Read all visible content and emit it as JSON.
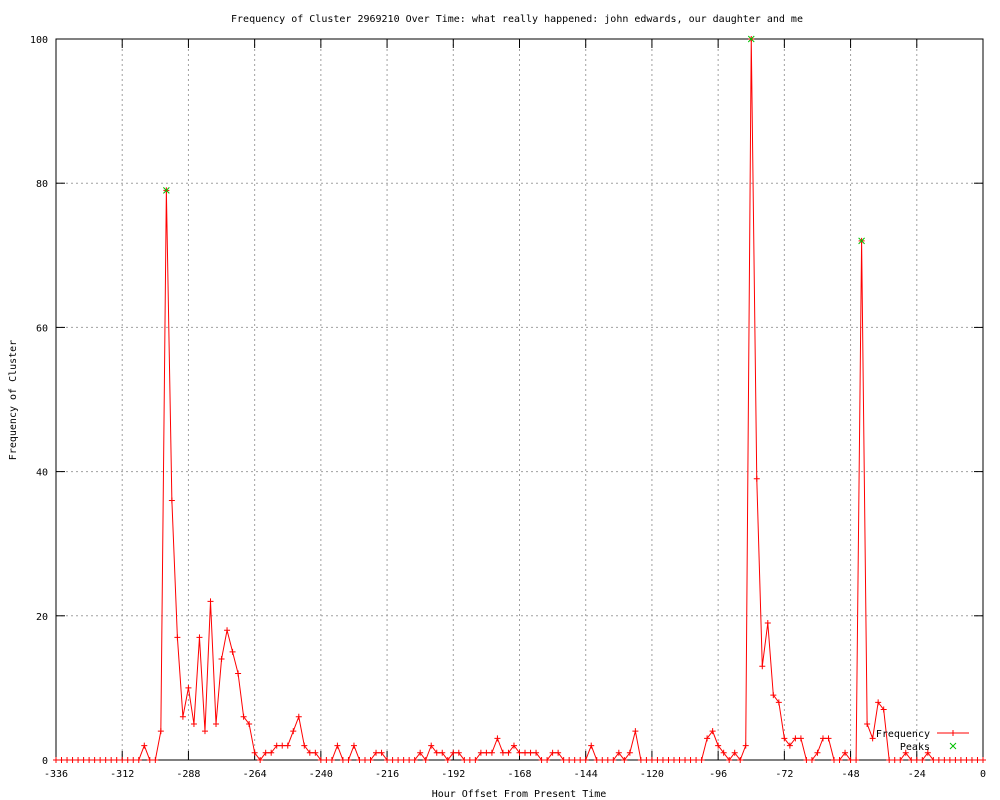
{
  "chart_data": {
    "type": "line",
    "title": "Frequency of Cluster 2969210 Over Time: what really happened: john edwards, our daughter and me",
    "xlabel": "Hour Offset From Present Time",
    "ylabel": "Frequency of Cluster",
    "xlim": [
      -336,
      0
    ],
    "ylim": [
      0,
      100
    ],
    "xticks": [
      -336,
      -312,
      -288,
      -264,
      -240,
      -216,
      -192,
      -168,
      -144,
      -120,
      -96,
      -72,
      -48,
      -24,
      0
    ],
    "yticks": [
      0,
      20,
      40,
      60,
      80,
      100
    ],
    "grid": true,
    "legend_position": "bottom-right",
    "colors": {
      "frequency": "#ff0000",
      "peaks": "#00c000",
      "grid": "#a0a0a0"
    },
    "series": [
      {
        "name": "Frequency",
        "style": "linespoints",
        "x_start": -336,
        "x_step": 2,
        "values": [
          0,
          0,
          0,
          0,
          0,
          0,
          0,
          0,
          0,
          0,
          0,
          0,
          0,
          0,
          0,
          0,
          2,
          0,
          0,
          4,
          79,
          36,
          17,
          6,
          10,
          5,
          17,
          4,
          22,
          5,
          14,
          18,
          15,
          12,
          6,
          5,
          1,
          0,
          1,
          1,
          2,
          2,
          2,
          4,
          6,
          2,
          1,
          1,
          0,
          0,
          0,
          2,
          0,
          0,
          2,
          0,
          0,
          0,
          1,
          1,
          0,
          0,
          0,
          0,
          0,
          0,
          1,
          0,
          2,
          1,
          1,
          0,
          1,
          1,
          0,
          0,
          0,
          1,
          1,
          1,
          3,
          1,
          1,
          2,
          1,
          1,
          1,
          1,
          0,
          0,
          1,
          1,
          0,
          0,
          0,
          0,
          0,
          2,
          0,
          0,
          0,
          0,
          1,
          0,
          1,
          4,
          0,
          0,
          0,
          0,
          0,
          0,
          0,
          0,
          0,
          0,
          0,
          0,
          3,
          4,
          2,
          1,
          0,
          1,
          0,
          2,
          100,
          39,
          13,
          19,
          9,
          8,
          3,
          2,
          3,
          3,
          0,
          0,
          1,
          3,
          3,
          0,
          0,
          1,
          0,
          0,
          72,
          5,
          3,
          8,
          7,
          0,
          0,
          0,
          1,
          0,
          0,
          0,
          1,
          0,
          0,
          0,
          0,
          0,
          0,
          0,
          0,
          0,
          0
        ]
      },
      {
        "name": "Peaks",
        "style": "points",
        "points": [
          [
            -296,
            79
          ],
          [
            -84,
            100
          ],
          [
            -44,
            72
          ]
        ]
      }
    ]
  }
}
